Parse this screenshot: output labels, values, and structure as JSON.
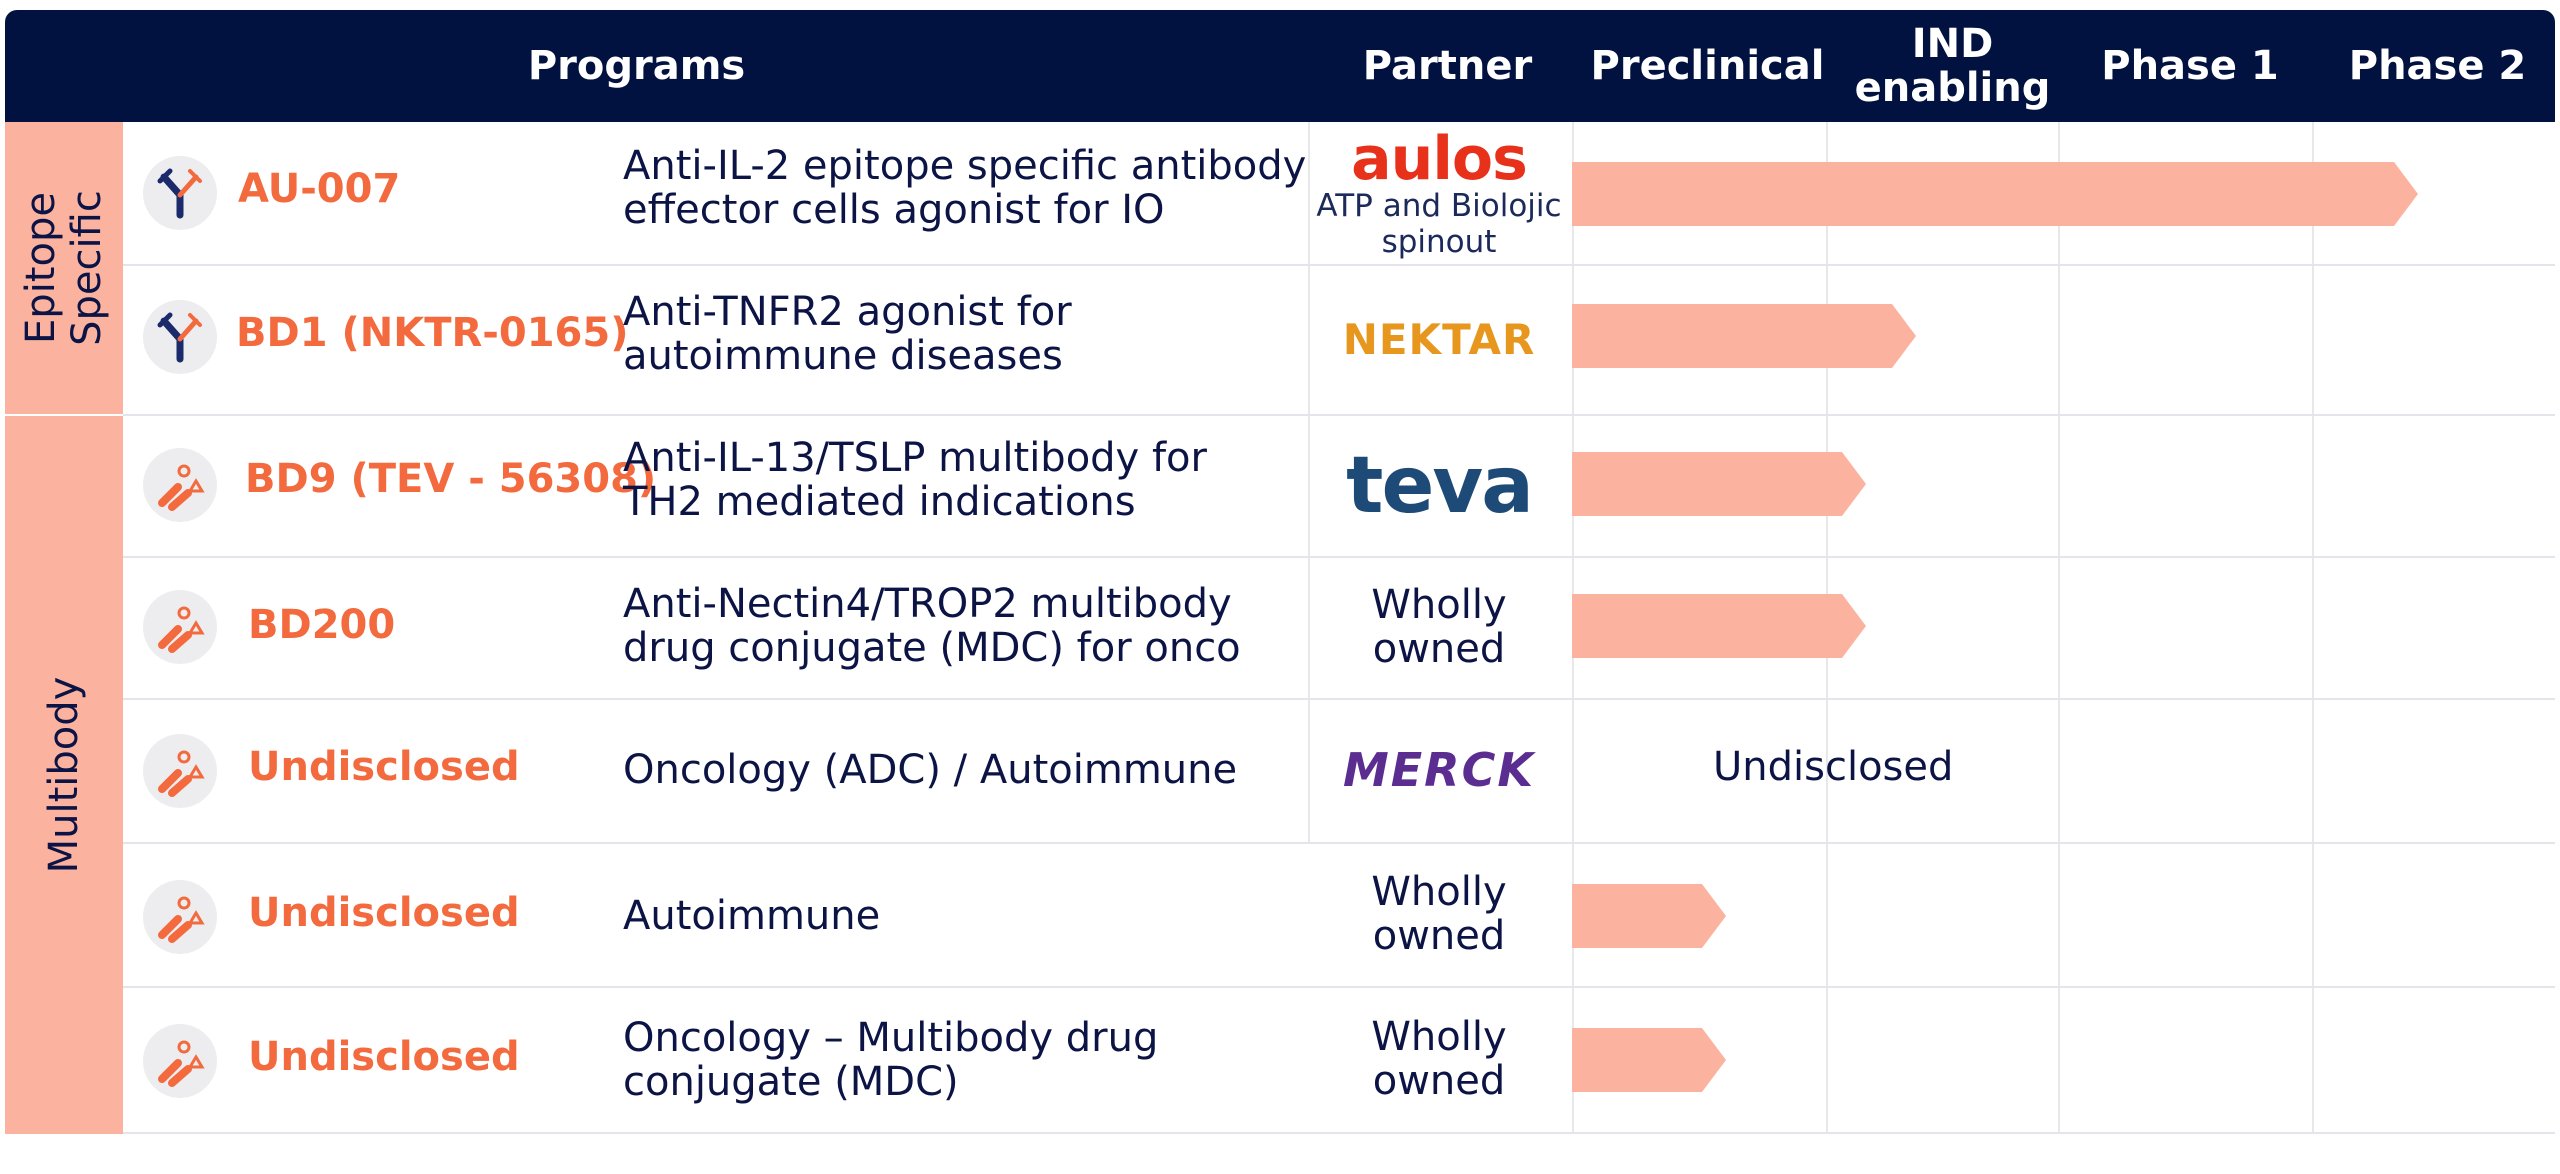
{
  "header": {
    "programs": "Programs",
    "partner": "Partner",
    "preclinical": "Preclinical",
    "ind_line1": "IND",
    "ind_line2": "enabling",
    "phase1": "Phase 1",
    "phase2": "Phase 2"
  },
  "groups": {
    "epitope_line1": "Epitope",
    "epitope_line2": "Specific",
    "multibody": "Multibody"
  },
  "rows": [
    {
      "name": "AU-007",
      "desc1": "Anti-IL-2 epitope specific antibody",
      "desc2": "effector cells agonist for IO",
      "partner_logo": "aulos",
      "partner_sub1": "ATP and Biolojic",
      "partner_sub2": "spinout",
      "progress_stage": "Phase 2",
      "icon": "antibody-icon"
    },
    {
      "name": "BD1 (NKTR-0165)",
      "desc1": "Anti-TNFR2 agonist for",
      "desc2": "autoimmune diseases",
      "partner_logo": "NEKTAR",
      "progress_stage": "IND enabling",
      "icon": "antibody-icon"
    },
    {
      "name": "BD9 (TEV - 56308)",
      "desc1": "Anti-IL-13/TSLP multibody for",
      "desc2": "TH2 mediated indications",
      "partner_logo": "teva",
      "progress_stage": "IND enabling",
      "icon": "multibody-icon"
    },
    {
      "name": "BD200",
      "desc1": "Anti-Nectin4/TROP2 multibody",
      "desc2": "drug conjugate (MDC) for onco",
      "partner_line1": "Wholly",
      "partner_line2": "owned",
      "progress_stage": "IND enabling",
      "icon": "multibody-icon"
    },
    {
      "name": "Undisclosed",
      "desc1": "Oncology (ADC) / Autoimmune",
      "partner_logo": "MERCK",
      "stage_text": "Undisclosed",
      "icon": "multibody-icon"
    },
    {
      "name": "Undisclosed",
      "desc1": "Autoimmune",
      "partner_line1": "Wholly",
      "partner_line2": "owned",
      "progress_stage": "Preclinical",
      "icon": "multibody-icon"
    },
    {
      "name": "Undisclosed",
      "desc1": "Oncology – Multibody drug",
      "desc2": "conjugate (MDC)",
      "partner_line1": "Wholly",
      "partner_line2": "owned",
      "progress_stage": "Preclinical",
      "icon": "multibody-icon"
    }
  ],
  "colors": {
    "header_bg": "#021240",
    "accent_orange": "#f26a3d",
    "bar_salmon": "#fbb3a0",
    "text_navy": "#0c1445",
    "aulos_red": "#e8311a",
    "nektar_orange": "#e7961e",
    "teva_blue": "#1e4a78",
    "teva_green": "#1fa37a",
    "merck_purple": "#5b2d91"
  }
}
